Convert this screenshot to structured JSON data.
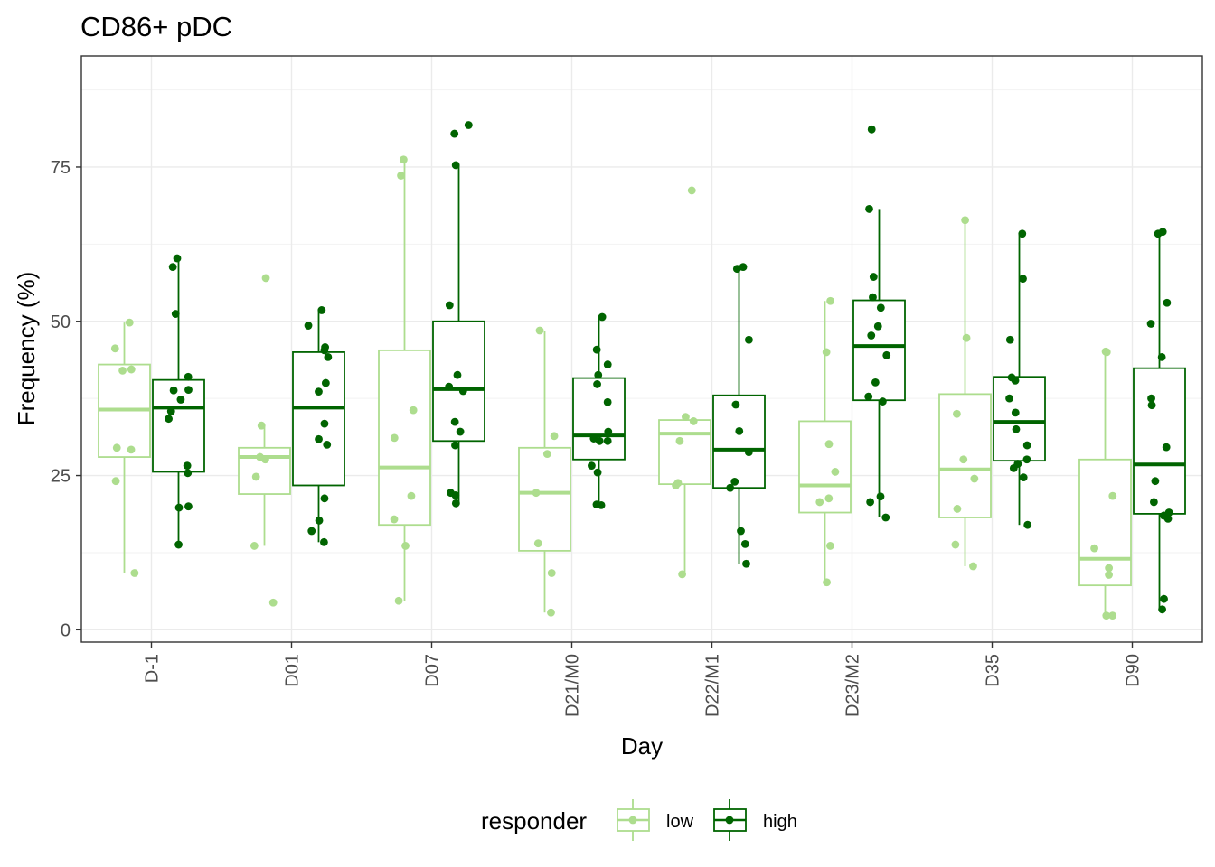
{
  "chart_data": {
    "type": "box",
    "title": "CD86+ pDC",
    "xlabel": "Day",
    "ylabel": "Frequency (%)",
    "ylim": [
      -2,
      93
    ],
    "y_ticks": [
      0,
      25,
      50,
      75
    ],
    "grid": true,
    "categories": [
      "D-1",
      "D01",
      "D07",
      "D21/M0",
      "D22/M1",
      "D23/M2",
      "D35",
      "D90"
    ],
    "legend": {
      "title": "responder",
      "position": "bottom"
    },
    "series": [
      {
        "name": "low",
        "color": "#addd8e",
        "boxes": [
          {
            "q1": 28.0,
            "median": 35.7,
            "q3": 43.0,
            "lower": 9.2,
            "upper": 49.8
          },
          {
            "q1": 22.0,
            "median": 28.0,
            "q3": 29.5,
            "lower": 13.6,
            "upper": 33.1
          },
          {
            "q1": 17.0,
            "median": 26.3,
            "q3": 45.3,
            "lower": 4.7,
            "upper": 76.2
          },
          {
            "q1": 12.8,
            "median": 22.2,
            "q3": 29.5,
            "lower": 2.8,
            "upper": 48.5
          },
          {
            "q1": 23.6,
            "median": 31.8,
            "q3": 34.0,
            "lower": 9.0,
            "upper": 34.5
          },
          {
            "q1": 19.0,
            "median": 23.4,
            "q3": 33.8,
            "lower": 7.7,
            "upper": 53.3
          },
          {
            "q1": 18.2,
            "median": 26.0,
            "q3": 38.2,
            "lower": 10.3,
            "upper": 66.4
          },
          {
            "q1": 7.2,
            "median": 11.5,
            "q3": 27.6,
            "lower": 2.3,
            "upper": 45.1
          }
        ],
        "points": [
          [
            49.8,
            45.6,
            42.0,
            42.2,
            29.5,
            29.2,
            24.1,
            9.2
          ],
          [
            57.0,
            33.1,
            28.0,
            27.6,
            24.8,
            13.6,
            4.4
          ],
          [
            76.2,
            73.6,
            35.6,
            31.1,
            21.7,
            17.9,
            13.6,
            4.7
          ],
          [
            48.5,
            31.4,
            28.5,
            22.2,
            14.0,
            9.2,
            2.8
          ],
          [
            71.2,
            34.5,
            33.8,
            30.6,
            23.8,
            23.4,
            9.0
          ],
          [
            53.3,
            45.0,
            30.1,
            25.6,
            21.3,
            20.7,
            13.6,
            7.7
          ],
          [
            66.4,
            47.3,
            35.0,
            27.6,
            24.5,
            19.6,
            13.8,
            10.3
          ],
          [
            45.1,
            45.0,
            21.7,
            13.2,
            10.0,
            8.9,
            2.3,
            2.3
          ]
        ]
      },
      {
        "name": "high",
        "color": "#006400",
        "boxes": [
          {
            "q1": 25.6,
            "median": 36.0,
            "q3": 40.5,
            "lower": 13.8,
            "upper": 60.2
          },
          {
            "q1": 23.4,
            "median": 36.0,
            "q3": 45.0,
            "lower": 14.2,
            "upper": 51.8
          },
          {
            "q1": 30.6,
            "median": 39.0,
            "q3": 50.0,
            "lower": 20.5,
            "upper": 75.3
          },
          {
            "q1": 27.6,
            "median": 31.5,
            "q3": 40.8,
            "lower": 20.2,
            "upper": 50.7
          },
          {
            "q1": 23.0,
            "median": 29.2,
            "q3": 38.0,
            "lower": 10.7,
            "upper": 58.8
          },
          {
            "q1": 37.2,
            "median": 46.0,
            "q3": 53.4,
            "lower": 18.2,
            "upper": 68.2
          },
          {
            "q1": 27.4,
            "median": 33.7,
            "q3": 41.0,
            "lower": 17.0,
            "upper": 64.2
          },
          {
            "q1": 18.8,
            "median": 26.8,
            "q3": 42.4,
            "lower": 3.3,
            "upper": 64.5
          }
        ],
        "points": [
          [
            60.2,
            58.8,
            51.2,
            41.0,
            38.9,
            38.8,
            37.3,
            35.4,
            34.2,
            26.6,
            25.4,
            20.0,
            19.8,
            13.8
          ],
          [
            51.8,
            49.3,
            45.8,
            45.3,
            44.2,
            40.0,
            38.6,
            33.4,
            30.9,
            30.0,
            21.3,
            17.7,
            16.0,
            14.2
          ],
          [
            81.8,
            80.4,
            75.3,
            52.6,
            41.3,
            39.4,
            38.7,
            33.7,
            32.1,
            29.9,
            22.2,
            21.8,
            20.5
          ],
          [
            50.7,
            45.4,
            43.0,
            41.3,
            39.8,
            36.9,
            32.1,
            31.0,
            30.6,
            30.6,
            26.6,
            25.5,
            20.3,
            20.2
          ],
          [
            58.8,
            58.5,
            47.0,
            36.5,
            32.2,
            28.8,
            24.0,
            23.0,
            16.0,
            13.9,
            10.7
          ],
          [
            81.1,
            68.2,
            57.2,
            53.9,
            52.2,
            49.2,
            47.7,
            44.5,
            40.1,
            37.8,
            37.0,
            21.6,
            20.7,
            18.2
          ],
          [
            64.2,
            56.9,
            47.0,
            40.9,
            40.4,
            37.5,
            35.2,
            32.5,
            29.9,
            27.6,
            26.9,
            26.2,
            24.7,
            17.0
          ],
          [
            64.5,
            64.2,
            53.0,
            49.6,
            44.2,
            37.5,
            36.4,
            29.6,
            24.1,
            20.7,
            19.0,
            18.5,
            18.0,
            5.0,
            3.3
          ]
        ]
      }
    ]
  }
}
